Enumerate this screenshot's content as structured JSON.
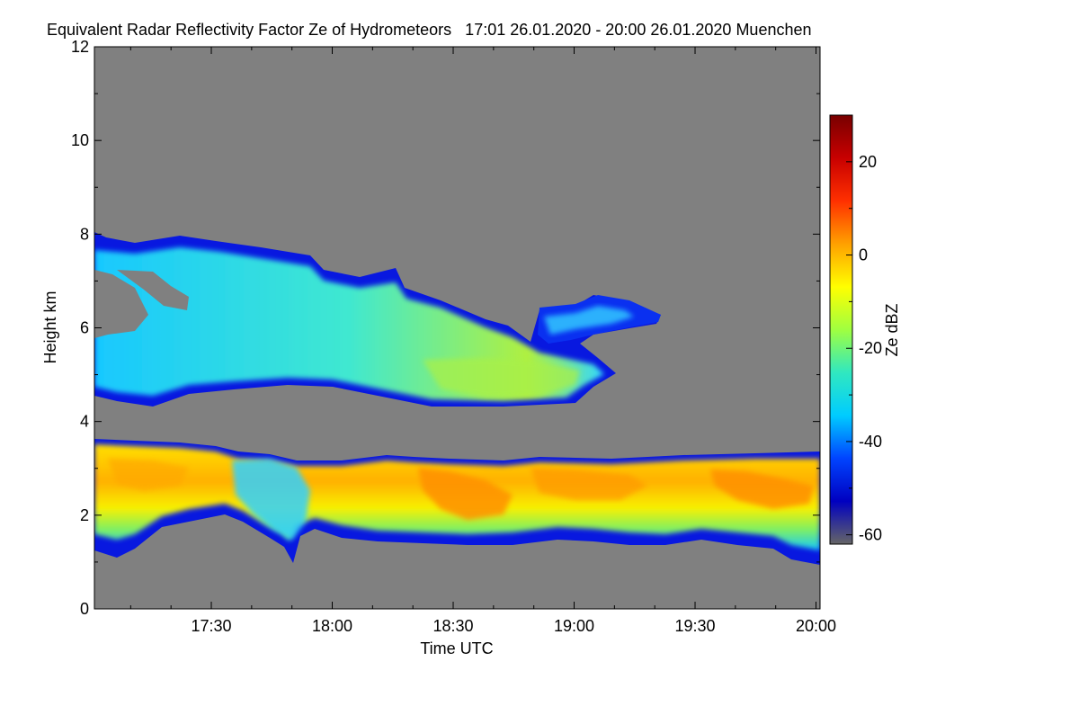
{
  "chart_data": {
    "type": "heatmap",
    "title": "Equivalent Radar Reflectivity Factor Ze of Hydrometeors   17:01 26.01.2020 - 20:00 26.01.2020 Muenchen",
    "xlabel": "Time UTC",
    "ylabel": "Height km",
    "xlim": [
      "17:01",
      "20:01"
    ],
    "ylim": [
      0,
      12
    ],
    "x_ticks": [
      "17:30",
      "18:00",
      "18:30",
      "19:00",
      "19:30",
      "20:00"
    ],
    "y_ticks": [
      "0",
      "2",
      "4",
      "6",
      "8",
      "10",
      "12"
    ],
    "colorbar": {
      "label": "Ze dBZ",
      "range": [
        -62,
        30
      ],
      "ticks": [
        "-60",
        "-40",
        "-20",
        "0",
        "20"
      ],
      "colormap": [
        "#666666",
        "#0000c0",
        "#0044ff",
        "#00ccff",
        "#30e8c0",
        "#a0ff40",
        "#ffff00",
        "#ffa000",
        "#ff3000",
        "#c80000",
        "#780000"
      ]
    },
    "background_color": "#808080",
    "cloud_layers": [
      {
        "name": "upper layer",
        "time_start": "17:01",
        "time_end": "19:21",
        "base_km": 4.4,
        "top_km": 7.8,
        "ze_dbz_range": [
          -45,
          -10
        ],
        "core_dbz": -12
      },
      {
        "name": "lower layer",
        "time_start": "17:01",
        "time_end": "20:01",
        "base_km": 1.0,
        "top_km": 3.6,
        "ze_dbz_range": [
          -45,
          5
        ],
        "core_dbz": 3
      }
    ]
  }
}
